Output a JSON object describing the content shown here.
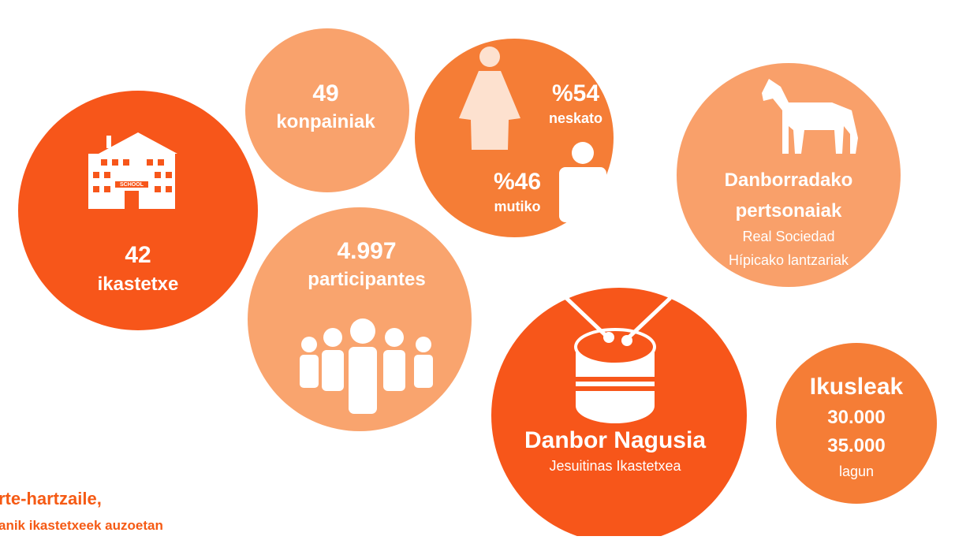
{
  "schools": {
    "number": "42",
    "label": "ikastetxe",
    "icon_text": "SCHOOL"
  },
  "companies": {
    "number": "49",
    "label": "konpainiak"
  },
  "gender": {
    "girls": {
      "percent": "%54",
      "label": "neskato"
    },
    "boys": {
      "percent": "%46",
      "label": "mutiko"
    }
  },
  "characters": {
    "title_1": "Danborradako",
    "title_2": "pertsonaiak",
    "line_1": "Real Sociedad",
    "line_2": "Hípicako lantzariak"
  },
  "participants": {
    "number": "4.997",
    "label": "participantes"
  },
  "main_drum": {
    "title": "Danbor Nagusia",
    "subtitle": "Jesuitinas Ikastetxea"
  },
  "spectators": {
    "title": "Ikusleak",
    "value_1": "30.000",
    "value_2": "35.000",
    "unit": "lagun"
  },
  "side_text": {
    "line_1": "rte-hartzaile,",
    "line_2": "anik ikastetxeek auzoetan"
  }
}
